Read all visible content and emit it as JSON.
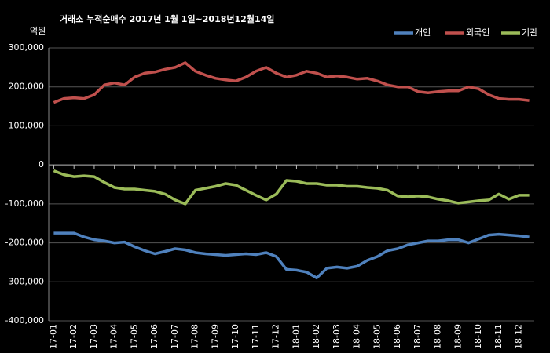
{
  "chart_data": {
    "type": "line",
    "title": "거래소 누적순매수 2017년 1월 1일~2018년12월14일",
    "y_label": "억원",
    "categories": [
      "17-01",
      null,
      "17-02",
      null,
      "17-03",
      null,
      "17-04",
      null,
      "17-05",
      null,
      "17-06",
      null,
      "17-07",
      null,
      "17-08",
      null,
      "17-09",
      null,
      "17-10",
      null,
      "17-11",
      null,
      "17-12",
      null,
      "18-01",
      null,
      "18-02",
      null,
      "18-03",
      null,
      "18-04",
      null,
      "18-05",
      null,
      "18-06",
      null,
      "18-07",
      null,
      "18-08",
      null,
      "18-09",
      null,
      "18-10",
      null,
      "18-11",
      null,
      "18-12",
      null
    ],
    "series": [
      {
        "name": "개인",
        "color": "#4f81bd",
        "values": [
          -175000,
          -175000,
          -175000,
          -185000,
          -192000,
          -195000,
          -200000,
          -198000,
          -210000,
          -220000,
          -228000,
          -222000,
          -215000,
          -218000,
          -225000,
          -228000,
          -230000,
          -232000,
          -230000,
          -228000,
          -230000,
          -225000,
          -235000,
          -268000,
          -270000,
          -275000,
          -290000,
          -265000,
          -262000,
          -265000,
          -260000,
          -245000,
          -235000,
          -220000,
          -215000,
          -205000,
          -200000,
          -195000,
          -195000,
          -192000,
          -192000,
          -200000,
          -190000,
          -180000,
          -178000,
          -180000,
          -182000,
          -185000
        ]
      },
      {
        "name": "외국인",
        "color": "#c0504d",
        "values": [
          160000,
          170000,
          172000,
          170000,
          180000,
          205000,
          210000,
          205000,
          225000,
          235000,
          238000,
          245000,
          250000,
          262000,
          240000,
          230000,
          222000,
          218000,
          215000,
          225000,
          240000,
          250000,
          235000,
          225000,
          230000,
          240000,
          235000,
          225000,
          228000,
          225000,
          220000,
          222000,
          215000,
          205000,
          200000,
          200000,
          188000,
          185000,
          188000,
          190000,
          190000,
          200000,
          195000,
          180000,
          170000,
          168000,
          168000,
          165000
        ]
      },
      {
        "name": "기관",
        "color": "#9bbb59",
        "values": [
          -15000,
          -25000,
          -30000,
          -28000,
          -30000,
          -45000,
          -58000,
          -62000,
          -62000,
          -65000,
          -68000,
          -75000,
          -90000,
          -100000,
          -65000,
          -60000,
          -55000,
          -48000,
          -52000,
          -65000,
          -78000,
          -90000,
          -75000,
          -40000,
          -42000,
          -48000,
          -48000,
          -52000,
          -52000,
          -55000,
          -55000,
          -58000,
          -60000,
          -65000,
          -80000,
          -82000,
          -80000,
          -82000,
          -88000,
          -92000,
          -98000,
          -95000,
          -92000,
          -90000,
          -75000,
          -88000,
          -78000,
          -78000
        ]
      }
    ],
    "ylim": [
      -400000,
      300000
    ],
    "yticks": [
      {
        "value": -400000,
        "label": "-400,000"
      },
      {
        "value": -300000,
        "label": "-300,000"
      },
      {
        "value": -200000,
        "label": "-200,000"
      },
      {
        "value": -100000,
        "label": "-100,000"
      },
      0,
      {
        "value": 100000,
        "label": "100,000"
      },
      {
        "value": 200000,
        "label": "200,000"
      },
      {
        "value": 300000,
        "label": "300,000"
      }
    ],
    "grid": true,
    "legend": "top-right"
  }
}
